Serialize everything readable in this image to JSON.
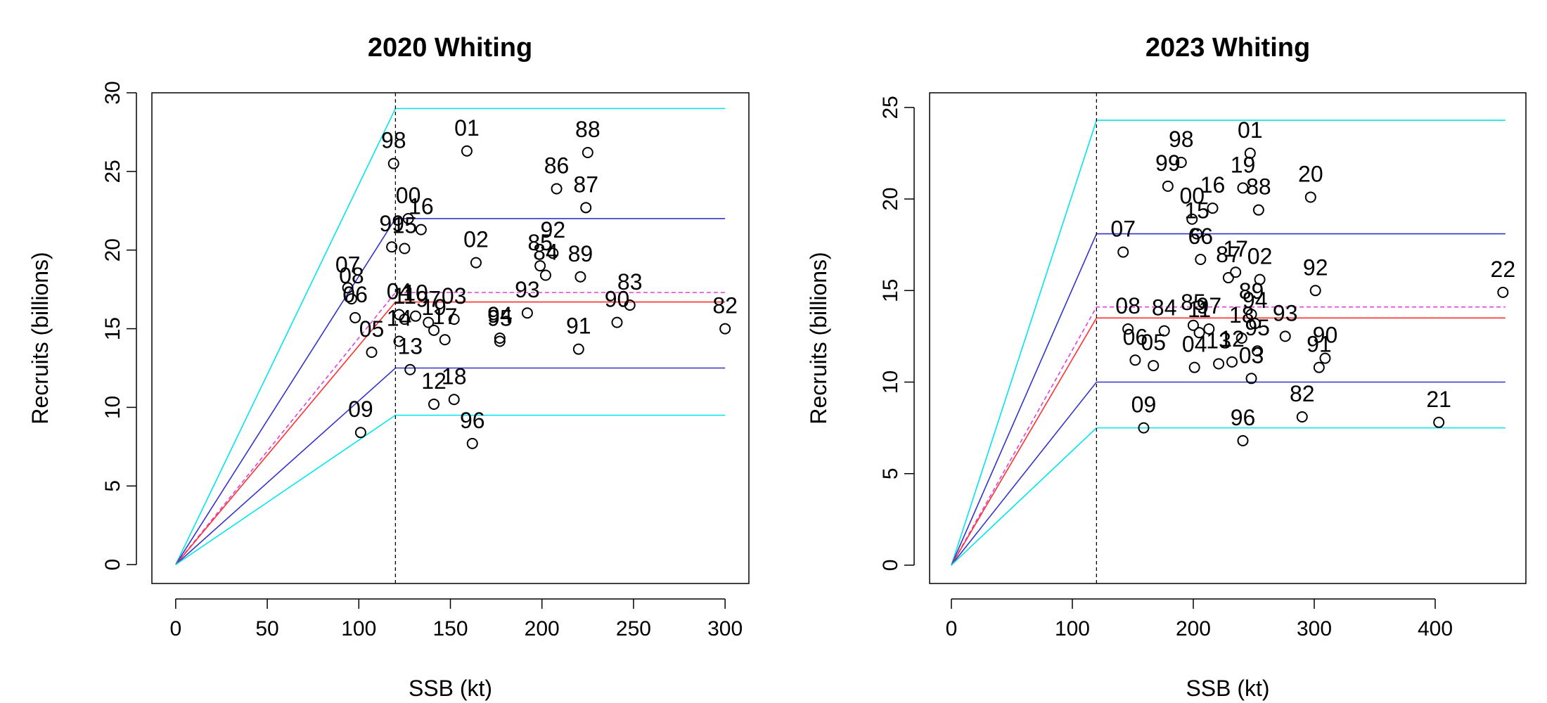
{
  "chart_data": [
    {
      "type": "scatter",
      "title": "2020 Whiting",
      "xlabel": "SSB (kt)",
      "ylabel": "Recruits (billions)",
      "xlim": [
        -13,
        313
      ],
      "ylim": [
        -1.2,
        30
      ],
      "xticks": [
        "0",
        "50",
        "100",
        "150",
        "200",
        "250",
        "300"
      ],
      "yticks": [
        "0",
        "5",
        "10",
        "15",
        "20",
        "25",
        "30"
      ],
      "breakpoint": 120,
      "segmented_regression": {
        "x_end": 300,
        "levels": [
          {
            "name": "upper-cyan",
            "color": "#00e5ee",
            "dash": false,
            "value": 29.0
          },
          {
            "name": "upper-blue",
            "color": "#3333cc",
            "dash": false,
            "value": 22.0
          },
          {
            "name": "mean-magenta",
            "color": "#e040e0",
            "dash": true,
            "value": 17.3
          },
          {
            "name": "median-red",
            "color": "#ff3030",
            "dash": false,
            "value": 16.7
          },
          {
            "name": "lower-blue",
            "color": "#3333cc",
            "dash": false,
            "value": 12.5
          },
          {
            "name": "lower-cyan",
            "color": "#00e5ee",
            "dash": false,
            "value": 9.5
          }
        ]
      },
      "points": [
        {
          "label": "01",
          "x": 159,
          "y": 26.3
        },
        {
          "label": "98",
          "x": 119,
          "y": 25.5
        },
        {
          "label": "88",
          "x": 225,
          "y": 26.2
        },
        {
          "label": "86",
          "x": 208,
          "y": 23.9
        },
        {
          "label": "87",
          "x": 224,
          "y": 22.7
        },
        {
          "label": "00",
          "x": 127,
          "y": 22.0
        },
        {
          "label": "16",
          "x": 134,
          "y": 21.3
        },
        {
          "label": "99",
          "x": 118,
          "y": 20.2
        },
        {
          "label": "15",
          "x": 125,
          "y": 20.1
        },
        {
          "label": "92",
          "x": 206,
          "y": 19.8
        },
        {
          "label": "02",
          "x": 164,
          "y": 19.2
        },
        {
          "label": "85",
          "x": 199,
          "y": 19.0
        },
        {
          "label": "89",
          "x": 221,
          "y": 18.3
        },
        {
          "label": "84",
          "x": 202,
          "y": 18.4
        },
        {
          "label": "07",
          "x": 94,
          "y": 17.6
        },
        {
          "label": "08",
          "x": 96,
          "y": 16.9
        },
        {
          "label": "06",
          "x": 98,
          "y": 15.7
        },
        {
          "label": "04",
          "x": 122,
          "y": 15.9
        },
        {
          "label": "11",
          "x": 125,
          "y": 15.6
        },
        {
          "label": "10",
          "x": 131,
          "y": 15.8
        },
        {
          "label": "97",
          "x": 138,
          "y": 15.4
        },
        {
          "label": "03",
          "x": 152,
          "y": 15.6
        },
        {
          "label": "19",
          "x": 141,
          "y": 14.9
        },
        {
          "label": "17",
          "x": 147,
          "y": 14.3
        },
        {
          "label": "93",
          "x": 192,
          "y": 16.0
        },
        {
          "label": "83",
          "x": 248,
          "y": 16.5
        },
        {
          "label": "90",
          "x": 241,
          "y": 15.4
        },
        {
          "label": "94",
          "x": 177,
          "y": 14.4
        },
        {
          "label": "95",
          "x": 177,
          "y": 14.2
        },
        {
          "label": "05",
          "x": 107,
          "y": 13.5
        },
        {
          "label": "14",
          "x": 122,
          "y": 14.2
        },
        {
          "label": "13",
          "x": 128,
          "y": 12.4
        },
        {
          "label": "91",
          "x": 220,
          "y": 13.7
        },
        {
          "label": "82",
          "x": 300,
          "y": 15.0
        },
        {
          "label": "12",
          "x": 141,
          "y": 10.2
        },
        {
          "label": "18",
          "x": 152,
          "y": 10.5
        },
        {
          "label": "09",
          "x": 101,
          "y": 8.4
        },
        {
          "label": "96",
          "x": 162,
          "y": 7.7
        }
      ]
    },
    {
      "type": "scatter",
      "title": "2023 Whiting",
      "xlabel": "SSB (kt)",
      "ylabel": "Recruits (billions)",
      "xlim": [
        -18,
        475
      ],
      "ylim": [
        -1.0,
        25.8
      ],
      "xticks": [
        "0",
        "100",
        "200",
        "300",
        "400"
      ],
      "yticks": [
        "0",
        "5",
        "10",
        "15",
        "20",
        "25"
      ],
      "breakpoint": 120,
      "segmented_regression": {
        "x_end": 458,
        "levels": [
          {
            "name": "upper-cyan",
            "color": "#00e5ee",
            "dash": false,
            "value": 24.3
          },
          {
            "name": "upper-blue",
            "color": "#3333cc",
            "dash": false,
            "value": 18.1
          },
          {
            "name": "mean-magenta",
            "color": "#e040e0",
            "dash": true,
            "value": 14.1
          },
          {
            "name": "median-red",
            "color": "#ff3030",
            "dash": false,
            "value": 13.5
          },
          {
            "name": "lower-blue",
            "color": "#3333cc",
            "dash": false,
            "value": 10.0
          },
          {
            "name": "lower-cyan",
            "color": "#00e5ee",
            "dash": false,
            "value": 7.5
          }
        ]
      },
      "points": [
        {
          "label": "01",
          "x": 247,
          "y": 22.5
        },
        {
          "label": "98",
          "x": 190,
          "y": 22.0
        },
        {
          "label": "99",
          "x": 179,
          "y": 20.7
        },
        {
          "label": "19",
          "x": 241,
          "y": 20.6
        },
        {
          "label": "20",
          "x": 297,
          "y": 20.1
        },
        {
          "label": "00",
          "x": 199,
          "y": 18.9
        },
        {
          "label": "16",
          "x": 216,
          "y": 19.5
        },
        {
          "label": "88",
          "x": 254,
          "y": 19.4
        },
        {
          "label": "07",
          "x": 142,
          "y": 17.1
        },
        {
          "label": "15",
          "x": 203,
          "y": 18.1
        },
        {
          "label": "66",
          "x": 206,
          "y": 16.7
        },
        {
          "label": "87",
          "x": 229,
          "y": 15.7
        },
        {
          "label": "17",
          "x": 235,
          "y": 16.0
        },
        {
          "label": "02",
          "x": 255,
          "y": 15.6
        },
        {
          "label": "92",
          "x": 301,
          "y": 15.0
        },
        {
          "label": "22",
          "x": 456,
          "y": 14.9
        },
        {
          "label": "08",
          "x": 146,
          "y": 12.9
        },
        {
          "label": "84",
          "x": 176,
          "y": 12.8
        },
        {
          "label": "85",
          "x": 200,
          "y": 13.1
        },
        {
          "label": "11",
          "x": 205,
          "y": 12.7
        },
        {
          "label": "97",
          "x": 213,
          "y": 12.9
        },
        {
          "label": "89",
          "x": 248,
          "y": 13.7
        },
        {
          "label": "94",
          "x": 251,
          "y": 13.2
        },
        {
          "label": "18",
          "x": 240,
          "y": 12.4
        },
        {
          "label": "93",
          "x": 276,
          "y": 12.5
        },
        {
          "label": "06",
          "x": 152,
          "y": 11.2
        },
        {
          "label": "05",
          "x": 167,
          "y": 10.9
        },
        {
          "label": "04",
          "x": 201,
          "y": 10.8
        },
        {
          "label": "13",
          "x": 221,
          "y": 11.0
        },
        {
          "label": "12",
          "x": 232,
          "y": 11.1
        },
        {
          "label": "95",
          "x": 253,
          "y": 11.7
        },
        {
          "label": "03",
          "x": 248,
          "y": 10.2
        },
        {
          "label": "91",
          "x": 304,
          "y": 10.8
        },
        {
          "label": "90",
          "x": 309,
          "y": 11.3
        },
        {
          "label": "82",
          "x": 290,
          "y": 8.1
        },
        {
          "label": "21",
          "x": 403,
          "y": 7.8
        },
        {
          "label": "09",
          "x": 159,
          "y": 7.5
        },
        {
          "label": "96",
          "x": 241,
          "y": 6.8
        }
      ]
    }
  ]
}
